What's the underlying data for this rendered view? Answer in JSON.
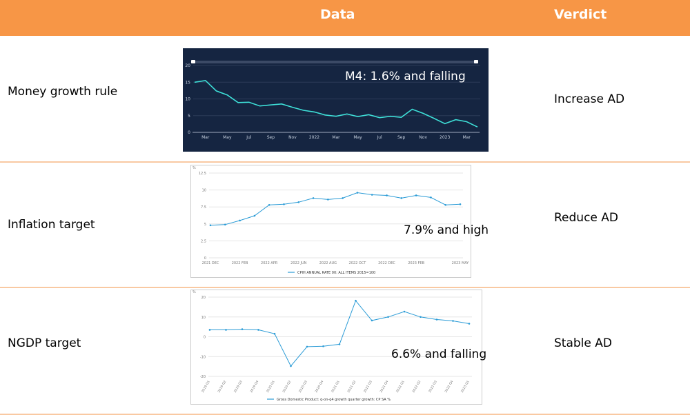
{
  "header": {
    "data_label": "Data",
    "verdict_label": "Verdict"
  },
  "colors": {
    "header": "#f79646",
    "border": "#f9c9a2",
    "m4_bg": "#152541",
    "m4_line": "#3ee0d8",
    "light_line": "#2a9bd6"
  },
  "rows": [
    {
      "label": "Money growth rule",
      "verdict": "Increase AD",
      "annotation": "M4: 1.6% and falling"
    },
    {
      "label": "Inflation target",
      "verdict": "Reduce AD",
      "annotation": "7.9% and high"
    },
    {
      "label": "NGDP target",
      "verdict": "Stable AD",
      "annotation": "6.6% and falling"
    }
  ],
  "chart_data": [
    {
      "type": "line",
      "x": [
        "2021-02",
        "2021-03",
        "2021-04",
        "2021-05",
        "2021-06",
        "2021-07",
        "2021-08",
        "2021-09",
        "2021-10",
        "2021-11",
        "2021-12",
        "2022-01",
        "2022-02",
        "2022-03",
        "2022-04",
        "2022-05",
        "2022-06",
        "2022-07",
        "2022-08",
        "2022-09",
        "2022-10",
        "2022-11",
        "2022-12",
        "2023-01",
        "2023-02",
        "2023-03",
        "2023-04"
      ],
      "series": [
        {
          "values": [
            15.0,
            15.5,
            12.4,
            11.2,
            8.9,
            9.0,
            7.9,
            8.2,
            8.5,
            7.5,
            6.6,
            6.1,
            5.2,
            4.8,
            5.5,
            4.7,
            5.3,
            4.4,
            4.8,
            4.5,
            6.9,
            5.7,
            4.2,
            2.6,
            3.8,
            3.2,
            1.6
          ]
        }
      ],
      "tick_labels": [
        "Mar",
        "May",
        "Jul",
        "Sep",
        "Nov",
        "2022",
        "Mar",
        "May",
        "Jul",
        "Sep",
        "Nov",
        "2023",
        "Mar"
      ],
      "yticks": [
        0,
        5,
        10,
        15,
        20
      ],
      "ylim": [
        0,
        20
      ]
    },
    {
      "type": "line",
      "x": [
        "2021 DEC",
        "2022 JAN",
        "2022 FEB",
        "2022 MAR",
        "2022 APR",
        "2022 MAY",
        "2022 JUN",
        "2022 JUL",
        "2022 AUG",
        "2022 SEP",
        "2022 OCT",
        "2022 NOV",
        "2022 DEC",
        "2023 JAN",
        "2023 FEB",
        "2023 MAR",
        "2023 APR",
        "2023 MAY"
      ],
      "series": [
        {
          "name": "CPIH ANNUAL RATE 00: ALL ITEMS 2015=100",
          "values": [
            4.8,
            4.9,
            5.5,
            6.2,
            7.8,
            7.9,
            8.2,
            8.8,
            8.6,
            8.8,
            9.6,
            9.3,
            9.2,
            8.8,
            9.2,
            8.9,
            7.8,
            7.9
          ]
        }
      ],
      "tick_labels": [
        "2021 DEC",
        "2022 FEB",
        "2022 APR",
        "2022 JUN",
        "2022 AUG",
        "2022 OCT",
        "2022 DEC",
        "2023 FEB",
        "2023 MAY"
      ],
      "yticks": [
        0,
        2.5,
        5,
        7.5,
        10,
        12.5
      ],
      "ylim": [
        0,
        12.5
      ],
      "ylabel": "%"
    },
    {
      "type": "line",
      "x": [
        "2019 Q1",
        "2019 Q2",
        "2019 Q3",
        "2019 Q4",
        "2020 Q1",
        "2020 Q2",
        "2020 Q3",
        "2020 Q4",
        "2021 Q1",
        "2021 Q2",
        "2021 Q3",
        "2021 Q4",
        "2022 Q1",
        "2022 Q2",
        "2022 Q3",
        "2022 Q4",
        "2023 Q1"
      ],
      "series": [
        {
          "name": "Gross Domestic Product: q-on-q4 growth quarter growth: CP SA %",
          "values": [
            3.5,
            3.5,
            3.8,
            3.5,
            1.5,
            -14.8,
            -5.0,
            -4.8,
            -3.8,
            18.2,
            8.2,
            10.0,
            12.7,
            10.0,
            8.7,
            8.0,
            6.6
          ]
        }
      ],
      "tick_labels": [
        "2019 Q1",
        "2019 Q2",
        "2019 Q3",
        "2019 Q4",
        "2020 Q1",
        "2020 Q2",
        "2020 Q3",
        "2020 Q4",
        "2021 Q1",
        "2021 Q2",
        "2021 Q3",
        "2021 Q4",
        "2022 Q1",
        "2022 Q2",
        "2022 Q3",
        "2022 Q4",
        "2023 Q1"
      ],
      "yticks": [
        -20,
        -10,
        0,
        10,
        20
      ],
      "ylim": [
        -20,
        20
      ],
      "ylabel": "%"
    }
  ]
}
